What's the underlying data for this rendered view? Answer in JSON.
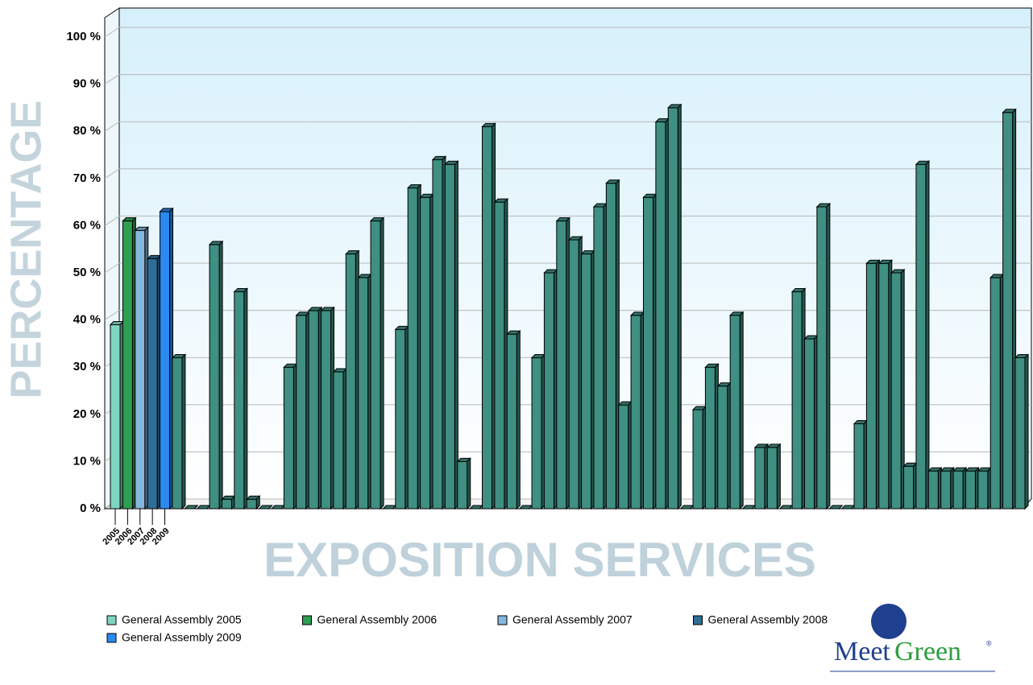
{
  "chart_data": {
    "type": "bar3d",
    "y_axis_label": "PERCENTAGE",
    "x_axis_label": "EXPOSITION SERVICES",
    "categories": [
      "2005",
      "2006",
      "2007",
      "2008",
      "2009",
      null,
      null,
      null,
      null,
      null,
      null,
      null,
      null,
      null,
      null,
      null,
      null,
      null,
      null,
      null,
      null,
      null,
      null,
      null,
      null,
      null,
      null,
      null,
      null,
      null,
      null,
      null,
      null,
      null,
      null,
      null,
      null,
      null,
      null,
      null,
      null,
      null,
      null,
      null,
      null,
      null,
      null,
      null,
      null,
      null,
      null,
      null,
      null,
      null,
      null,
      null,
      null,
      null,
      null,
      null,
      null,
      null,
      null,
      null,
      null,
      null,
      null,
      null,
      null,
      null,
      null,
      null,
      null,
      null
    ],
    "series": [
      {
        "name": "General Assembly 2005",
        "color": "#7fd6c0",
        "values": [
          39,
          null,
          null,
          null,
          null,
          null,
          null,
          null,
          null,
          null,
          null,
          null,
          null,
          null,
          null,
          null,
          null,
          null,
          null,
          null,
          null,
          null,
          null,
          null,
          null,
          null,
          null,
          null,
          null,
          null,
          null,
          null,
          null,
          null,
          null,
          null,
          null,
          null,
          null,
          null,
          null,
          null,
          null,
          null,
          null,
          null,
          null,
          null,
          null,
          null,
          null,
          null,
          null,
          null,
          null,
          null,
          null,
          null,
          null,
          null,
          null,
          null,
          null,
          null,
          null,
          null,
          null,
          null,
          null,
          null,
          null,
          null,
          null,
          null
        ]
      },
      {
        "name": "General Assembly 2006",
        "color": "#2e9e50",
        "values": [
          null,
          61,
          null,
          null,
          null,
          null,
          null,
          null,
          null,
          null,
          null,
          null,
          null,
          null,
          null,
          null,
          null,
          null,
          null,
          null,
          null,
          null,
          null,
          null,
          null,
          null,
          null,
          null,
          null,
          null,
          null,
          null,
          null,
          null,
          null,
          null,
          null,
          null,
          null,
          null,
          null,
          null,
          null,
          null,
          null,
          null,
          null,
          null,
          null,
          null,
          null,
          null,
          null,
          null,
          null,
          null,
          null,
          null,
          null,
          null,
          null,
          null,
          null,
          null,
          null,
          null,
          null,
          null,
          null,
          null,
          null,
          null,
          null,
          null
        ]
      },
      {
        "name": "General Assembly 2007",
        "color": "#86b6dc",
        "values": [
          null,
          null,
          59,
          null,
          null,
          null,
          null,
          null,
          null,
          null,
          null,
          null,
          null,
          null,
          null,
          null,
          null,
          null,
          null,
          null,
          null,
          null,
          null,
          null,
          null,
          null,
          null,
          null,
          null,
          null,
          null,
          null,
          null,
          null,
          null,
          null,
          null,
          null,
          null,
          null,
          null,
          null,
          null,
          null,
          null,
          null,
          null,
          null,
          null,
          null,
          null,
          null,
          null,
          null,
          null,
          null,
          null,
          null,
          null,
          null,
          null,
          null,
          null,
          null,
          null,
          null,
          null,
          null,
          null,
          null,
          null,
          null,
          null,
          null
        ]
      },
      {
        "name": "General Assembly 2008",
        "color": "#2e6e96",
        "values": [
          null,
          null,
          null,
          53,
          null,
          null,
          null,
          null,
          null,
          null,
          null,
          null,
          null,
          null,
          null,
          null,
          null,
          null,
          null,
          null,
          null,
          null,
          null,
          null,
          null,
          null,
          null,
          null,
          null,
          null,
          null,
          null,
          null,
          null,
          null,
          null,
          null,
          null,
          null,
          null,
          null,
          null,
          null,
          null,
          null,
          null,
          null,
          null,
          null,
          null,
          null,
          null,
          null,
          null,
          null,
          null,
          null,
          null,
          null,
          null,
          null,
          null,
          null,
          null,
          null,
          null,
          null,
          null,
          null,
          null,
          null,
          null,
          null,
          null
        ]
      },
      {
        "name": "General Assembly 2009",
        "color": "#2a8af0",
        "values": [
          null,
          null,
          null,
          null,
          63,
          null,
          null,
          null,
          null,
          null,
          null,
          null,
          null,
          null,
          null,
          null,
          null,
          null,
          null,
          null,
          null,
          null,
          null,
          null,
          null,
          null,
          null,
          null,
          null,
          null,
          null,
          null,
          null,
          null,
          null,
          null,
          null,
          null,
          null,
          null,
          null,
          null,
          null,
          null,
          null,
          null,
          null,
          null,
          null,
          null,
          null,
          null,
          null,
          null,
          null,
          null,
          null,
          null,
          null,
          null,
          null,
          null,
          null,
          null,
          null,
          null,
          null,
          null,
          null,
          null,
          null,
          null,
          null,
          null
        ]
      },
      {
        "color": "#3f8f82",
        "values": [
          null,
          null,
          null,
          null,
          null,
          32,
          0,
          0,
          56,
          2,
          46,
          2,
          0,
          0,
          30,
          41,
          42,
          42,
          29,
          54,
          49,
          61,
          0,
          38,
          68,
          66,
          74,
          73,
          10,
          0,
          81,
          65,
          37,
          0,
          32,
          50,
          61,
          57,
          54,
          64,
          69,
          22,
          41,
          66,
          82,
          85,
          0,
          21,
          30,
          26,
          41,
          0,
          13,
          13,
          0,
          46,
          36,
          64,
          0,
          0,
          18,
          52,
          52,
          50,
          9,
          73,
          8,
          8,
          8,
          8,
          8,
          49,
          84,
          32
        ]
      }
    ],
    "ylim": [
      0,
      106
    ],
    "yticks": [
      {
        "value": 0,
        "label": "0 %"
      },
      {
        "value": 10,
        "label": "10 %"
      },
      {
        "value": 20,
        "label": "20 %"
      },
      {
        "value": 30,
        "label": "30 %"
      },
      {
        "value": 40,
        "label": "40 %"
      },
      {
        "value": 50,
        "label": "50 %"
      },
      {
        "value": 60,
        "label": "60 %"
      },
      {
        "value": 70,
        "label": "70 %"
      },
      {
        "value": 80,
        "label": "80 %"
      },
      {
        "value": 90,
        "label": "90 %"
      },
      {
        "value": 100,
        "label": "100 %"
      }
    ],
    "grid": true
  },
  "logo": {
    "words": [
      "Meet",
      "Green"
    ],
    "mark": "®"
  }
}
